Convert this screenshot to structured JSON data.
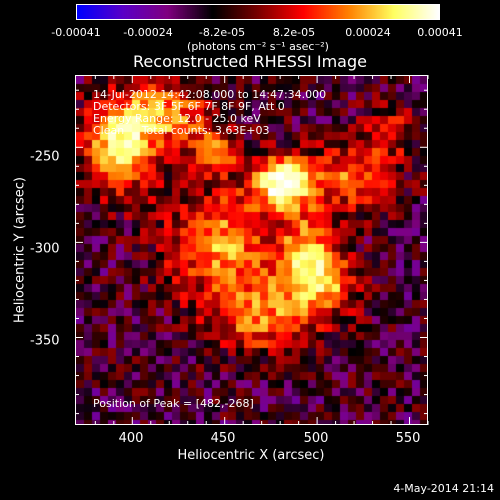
{
  "colorbar": {
    "ticks": [
      "-0.00041",
      "-0.00024",
      "-8.2e-05",
      "8.2e-05",
      "0.00024",
      "0.00041"
    ],
    "units": "(photons cm⁻² s⁻¹ asec⁻²)",
    "colors": [
      "#0000ff",
      "#5a00c8",
      "#800080",
      "#000000",
      "#7a0000",
      "#ff0000",
      "#ff8000",
      "#ffff60",
      "#ffffff"
    ]
  },
  "chart_data": {
    "type": "heatmap",
    "title": "Reconstructed RHESSI Image",
    "xlabel": "Heliocentric X (arcsec)",
    "ylabel": "Heliocentric Y (arcsec)",
    "xlim": [
      369,
      560
    ],
    "ylim": [
      -396,
      -212
    ],
    "x_ticks": [
      "400",
      "450",
      "500",
      "550"
    ],
    "x_tick_values": [
      400,
      450,
      500,
      550
    ],
    "y_ticks": [
      "-250",
      "-300",
      "-350"
    ],
    "y_tick_values": [
      -250,
      -300,
      -350
    ],
    "info_lines": [
      "14-Jul-2012 14:42:08.000 to 14:47:34.000",
      "Detectors: 3F 5F 6F 7F 8F 9F, Att 0",
      "Energy Range: 12.0 - 25.0 keV",
      "Clean     Total counts: 3.63E+03"
    ],
    "peak_text": "Position of Peak = [482,-268]",
    "peak": [
      482,
      -268
    ],
    "sources": [
      {
        "x": 482,
        "y": -268,
        "sx": 12,
        "sy": 10,
        "a": 1.0
      },
      {
        "x": 448,
        "y": -300,
        "sx": 22,
        "sy": 20,
        "a": 0.65
      },
      {
        "x": 392,
        "y": -250,
        "sx": 14,
        "sy": 18,
        "a": 0.8
      },
      {
        "x": 418,
        "y": -232,
        "sx": 18,
        "sy": 12,
        "a": 0.6
      },
      {
        "x": 520,
        "y": -265,
        "sx": 16,
        "sy": 14,
        "a": 0.55
      },
      {
        "x": 502,
        "y": -320,
        "sx": 14,
        "sy": 12,
        "a": 0.7
      },
      {
        "x": 470,
        "y": -340,
        "sx": 22,
        "sy": 14,
        "a": 0.55
      },
      {
        "x": 495,
        "y": -300,
        "sx": 10,
        "sy": 12,
        "a": 0.5
      },
      {
        "x": 445,
        "y": -252,
        "sx": 10,
        "sy": 8,
        "a": 0.5
      },
      {
        "x": 540,
        "y": -240,
        "sx": 10,
        "sy": 10,
        "a": 0.35
      }
    ]
  },
  "timestamp": "4-May-2014 21:14"
}
